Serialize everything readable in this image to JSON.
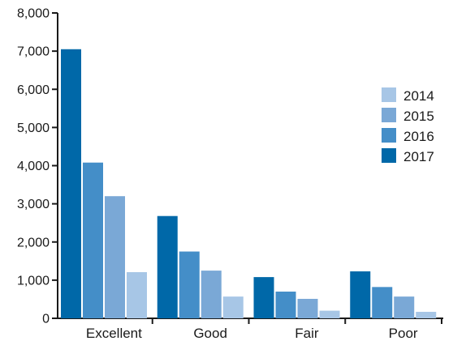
{
  "chart_data": {
    "type": "bar",
    "title": "",
    "xlabel": "",
    "ylabel": "",
    "ylim": [
      0,
      8000
    ],
    "y_ticks": [
      0,
      1000,
      2000,
      3000,
      4000,
      5000,
      6000,
      7000,
      8000
    ],
    "y_tick_labels": [
      "0",
      "1,000",
      "2,000",
      "3,000",
      "4,000",
      "5,000",
      "6,000",
      "7,000",
      "8,000"
    ],
    "categories": [
      "Excellent",
      "Good",
      "Fair",
      "Poor"
    ],
    "series": [
      {
        "name": "2017",
        "color": "#0068a8",
        "values": [
          7050,
          2680,
          1080,
          1230
        ]
      },
      {
        "name": "2016",
        "color": "#448ec8",
        "values": [
          4080,
          1750,
          700,
          820
        ]
      },
      {
        "name": "2015",
        "color": "#7aa8d6",
        "values": [
          3200,
          1250,
          510,
          570
        ]
      },
      {
        "name": "2014",
        "color": "#a7c6e6",
        "values": [
          1210,
          570,
          200,
          170
        ]
      }
    ],
    "legend": {
      "placement": "right",
      "entries": [
        "2014",
        "2015",
        "2016",
        "2017"
      ]
    },
    "grid": false
  }
}
